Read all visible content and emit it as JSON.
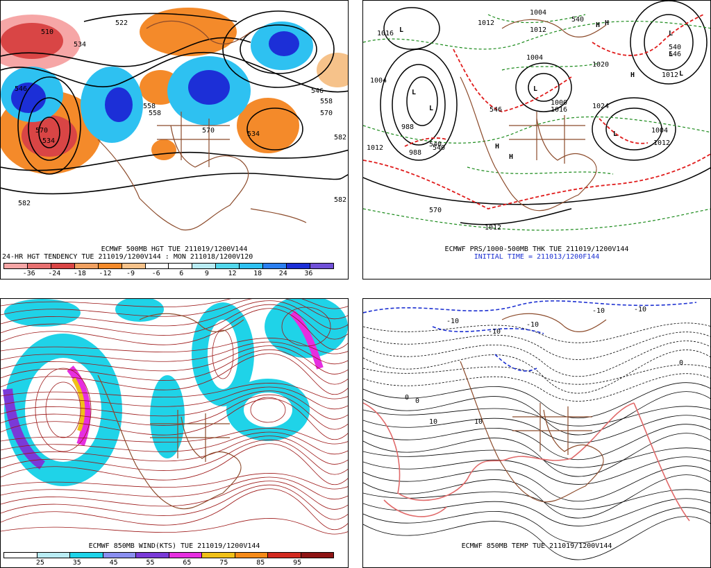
{
  "panels": {
    "p1": {
      "title": "ECMWF 500MB HGT TUE 211019/1200V144",
      "subtitle": "24-HR HGT TENDENCY TUE 211019/1200V144 : MON 211018/1200V120",
      "contour_labels": [
        "510",
        "534",
        "522",
        "546",
        "534",
        "558",
        "558",
        "570",
        "570",
        "534",
        "546",
        "558",
        "570",
        "582",
        "582",
        "582"
      ],
      "colorbar": {
        "colors": [
          "#f6a6a6",
          "#e77070",
          "#d94545",
          "#f0a060",
          "#f48a2a",
          "#f6c28a",
          "#ffffff",
          "#ffffff",
          "#b9ecf3",
          "#52d7ec",
          "#2ec1f1",
          "#2b7ff0",
          "#1c2fd7",
          "#7050d8"
        ],
        "ticks": [
          "-36",
          "-24",
          "-18",
          "-12",
          "-9",
          "-6",
          "6",
          "9",
          "12",
          "18",
          "24",
          "36"
        ]
      }
    },
    "p2": {
      "title": "ECMWF PRS/1000-500MB THK TUE 211019/1200V144",
      "subtitle": "INITIAL TIME = 211013/1200F144",
      "labels": [
        "1012",
        "988",
        "1004",
        "988",
        "1012",
        "1024",
        "1016",
        "1020",
        "1000",
        "1004",
        "1012",
        "1012",
        "1004",
        "1012",
        "1004",
        "1016",
        "1012",
        "540",
        "540",
        "546",
        "570",
        "540",
        "546",
        "540"
      ],
      "highs": [
        "H",
        "H",
        "H",
        "H",
        "H"
      ],
      "lows": [
        "L",
        "L",
        "L",
        "L",
        "L",
        "L",
        "L",
        "L"
      ]
    },
    "p3": {
      "title": "ECMWF 850MB WIND(KTS) TUE 211019/1200V144",
      "colorbar": {
        "colors": [
          "#ffffff",
          "#b9ecf3",
          "#1fd3e8",
          "#8a8ff0",
          "#7a3ad8",
          "#e62ee0",
          "#f0c018",
          "#f68a18",
          "#d22a20",
          "#8e1414"
        ],
        "ticks": [
          "25",
          "35",
          "45",
          "55",
          "65",
          "75",
          "85",
          "95"
        ]
      }
    },
    "p4": {
      "title": "ECMWF 850MB TEMP TUE 211019/1200V144",
      "labels": [
        "-10",
        "-10",
        "-10",
        "-10",
        "-10",
        "0",
        "0",
        "0",
        "10",
        "10"
      ]
    }
  },
  "colors": {
    "height_contour": "#000000",
    "coastline": "#8b4a2a",
    "thickness_red": "#e01b1b",
    "thickness_green": "#1a8a1a",
    "high_marker": "#3aaee6",
    "low_marker": "#e01b1b",
    "wind_stream": "#9b1414",
    "temp_zero": "#e06a6a",
    "temp_cold": "#1b2fd1"
  }
}
